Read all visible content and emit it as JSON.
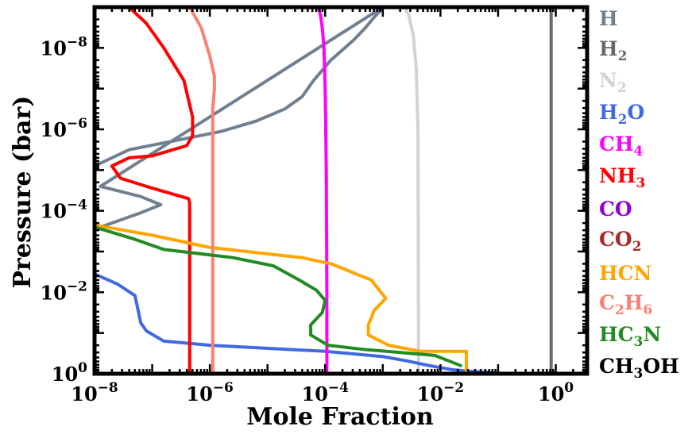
{
  "chart_data": {
    "type": "line",
    "title": "",
    "xlabel": "Mole Fraction",
    "ylabel": "Pressure (bar)",
    "xscale": "log",
    "yscale": "log",
    "y_inverted": true,
    "xlim": [
      1e-08,
      3.5
    ],
    "ylim": [
      1,
      1e-09
    ],
    "x_ticks": [
      {
        "base": "10",
        "exp": "−8",
        "value": -8
      },
      {
        "base": "10",
        "exp": "−6",
        "value": -6
      },
      {
        "base": "10",
        "exp": "−4",
        "value": -4
      },
      {
        "base": "10",
        "exp": "−2",
        "value": -2
      },
      {
        "base": "10",
        "exp": "0",
        "value": 0
      }
    ],
    "y_ticks": [
      {
        "base": "10",
        "exp": "−8",
        "value": -8
      },
      {
        "base": "10",
        "exp": "−6",
        "value": -6
      },
      {
        "base": "10",
        "exp": "−4",
        "value": -4
      },
      {
        "base": "10",
        "exp": "−2",
        "value": -2
      },
      {
        "base": "10",
        "exp": "0",
        "value": 0
      }
    ],
    "series": [
      {
        "name": "H",
        "main": "H",
        "sub": "",
        "color": "#708090",
        "x": [
          -8,
          -7.4,
          -6.5,
          -5.8,
          -5.2,
          -4.7,
          -4.4,
          -4.2,
          -3.9,
          -3.5,
          -3.3,
          -3.15,
          -3.05,
          -3.0,
          -7.9,
          -7.2,
          -6.85,
          -7.2,
          -7.9,
          -8.0
        ],
        "y": [
          -5.1,
          -5.5,
          -5.75,
          -5.95,
          -6.2,
          -6.5,
          -6.8,
          -7.2,
          -7.7,
          -8.2,
          -8.5,
          -8.75,
          -8.9,
          -9.0,
          -4.6,
          -4.35,
          -4.15,
          -3.95,
          -3.6,
          -3.55
        ]
      },
      {
        "name": "H2",
        "main": "H",
        "sub": "2",
        "color": "#696969",
        "x": [
          -0.08,
          -0.08
        ],
        "y": [
          0,
          -9
        ]
      },
      {
        "name": "N2",
        "main": "N",
        "sub": "2",
        "color": "#d3d3d3",
        "x": [
          -2.38,
          -2.38,
          -2.39,
          -2.42,
          -2.47,
          -2.55,
          -2.62
        ],
        "y": [
          0,
          -0.6,
          -6.0,
          -7.5,
          -8.3,
          -8.8,
          -9.0
        ]
      },
      {
        "name": "H2O",
        "main": "H",
        "sub": "2",
        "main2": "O",
        "color": "#4169e1",
        "x": [
          -8,
          -7.6,
          -7.3,
          -7.25,
          -7.2,
          -7.1,
          -6.8,
          -6.0,
          -4.0,
          -3.0,
          -2.6,
          -2.2,
          -1.8,
          -1.5,
          -1.1
        ],
        "y": [
          -2.45,
          -2.2,
          -1.92,
          -1.6,
          -1.25,
          -1.05,
          -0.8,
          -0.7,
          -0.55,
          -0.42,
          -0.32,
          -0.2,
          -0.1,
          -0.06,
          -0.03
        ]
      },
      {
        "name": "CH4",
        "main": "CH",
        "sub": "4",
        "color": "#ff00ff",
        "x": [
          -3.97,
          -3.97,
          -3.98,
          -4.0,
          -4.02,
          -4.05,
          -4.08,
          -4.12
        ],
        "y": [
          0,
          -2.0,
          -5.0,
          -7.0,
          -8.0,
          -8.5,
          -8.8,
          -9.0
        ]
      },
      {
        "name": "NH3",
        "main": "NH",
        "sub": "3",
        "color": "#ff0000",
        "x": [
          -6.35,
          -6.35,
          -6.37,
          -7.1,
          -7.55,
          -7.7,
          -7.4,
          -7.0,
          -6.4,
          -6.3,
          -6.3,
          -6.45,
          -6.8,
          -7.1,
          -7.4
        ],
        "y": [
          0,
          -4.2,
          -4.3,
          -4.6,
          -4.8,
          -5.1,
          -5.3,
          -5.35,
          -5.6,
          -5.85,
          -6.3,
          -7.2,
          -8.0,
          -8.6,
          -9.0
        ]
      },
      {
        "name": "CO",
        "main": "CO",
        "sub": "",
        "color": "#9400d3",
        "x": [],
        "y": []
      },
      {
        "name": "CO2",
        "main": "CO",
        "sub": "2",
        "color": "#a52a2a",
        "x": [],
        "y": []
      },
      {
        "name": "HCN",
        "main": "HCN",
        "sub": "",
        "color": "#ffa500",
        "x": [
          -8,
          -7.0,
          -6.0,
          -4.4,
          -3.9,
          -3.2,
          -2.95,
          -3.15,
          -3.25,
          -3.25,
          -2.9,
          -2.35,
          -1.55,
          -1.55,
          -1.55
        ],
        "y": [
          -3.65,
          -3.4,
          -3.1,
          -2.85,
          -2.7,
          -2.3,
          -1.85,
          -1.55,
          -1.2,
          -0.95,
          -0.7,
          -0.55,
          -0.55,
          -0.35,
          -0.05
        ]
      },
      {
        "name": "C2H6",
        "main": "C",
        "sub": "2",
        "main2": "H",
        "sub2": "6",
        "color": "#fa8072",
        "x": [
          -5.95,
          -5.95,
          -5.95,
          -5.92,
          -5.92,
          -6.0,
          -6.15,
          -6.35
        ],
        "y": [
          0,
          -3.0,
          -6.5,
          -7.0,
          -7.3,
          -7.8,
          -8.5,
          -9.0
        ]
      },
      {
        "name": "HC3N",
        "main": "HC",
        "sub": "3",
        "main2": "N",
        "color": "#228b22",
        "x": [
          -8,
          -7.3,
          -6.8,
          -5.6,
          -4.9,
          -4.45,
          -4.15,
          -4.0,
          -4.05,
          -4.25,
          -4.25,
          -3.95,
          -3.35,
          -2.1,
          -1.65
        ],
        "y": [
          -3.6,
          -3.3,
          -3.05,
          -2.85,
          -2.65,
          -2.3,
          -2.05,
          -1.8,
          -1.5,
          -1.2,
          -0.95,
          -0.7,
          -0.6,
          -0.45,
          -0.2
        ]
      },
      {
        "name": "CH3OH",
        "main": "CH",
        "sub": "3",
        "main2": "OH",
        "color": "#000000",
        "x": [],
        "y": []
      }
    ]
  }
}
